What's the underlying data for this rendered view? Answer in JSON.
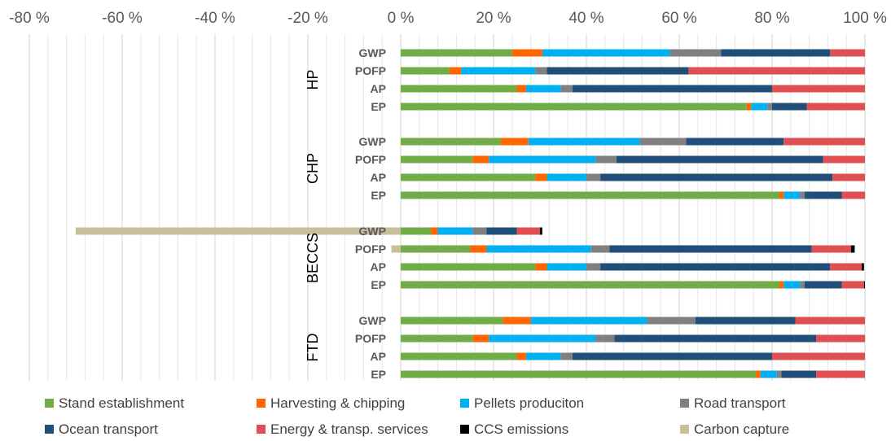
{
  "chart_data": {
    "type": "bar",
    "orientation": "horizontal",
    "stacked": true,
    "xlim": [
      -80,
      100
    ],
    "x_ticks": [
      "-80 %",
      "-60 %",
      "-40 %",
      "-20 %",
      "0 %",
      "20 %",
      "40 %",
      "60 %",
      "80 %",
      "100 %"
    ],
    "x_tick_values": [
      -80,
      -60,
      -40,
      -20,
      0,
      20,
      40,
      60,
      80,
      100
    ],
    "grid": "vertical minor gridlines",
    "legend_position": "bottom",
    "series": [
      {
        "name": "Stand establishment",
        "color": "#70AD47"
      },
      {
        "name": "Harvesting & chipping",
        "color": "#FF6600"
      },
      {
        "name": "Pellets produciton",
        "color": "#00B0F0"
      },
      {
        "name": "Road transport",
        "color": "#808080"
      },
      {
        "name": "Ocean transport",
        "color": "#1F4E79"
      },
      {
        "name": "Energy & transp. services",
        "color": "#E04F52"
      },
      {
        "name": "CCS emissions",
        "color": "#000000"
      },
      {
        "name": "Carbon capture",
        "color": "#C8BE9B"
      }
    ],
    "groups": [
      {
        "name": "HP",
        "bars": [
          {
            "label": "GWP",
            "values": [
              24,
              6.5,
              27.5,
              11,
              23.5,
              7.5,
              0,
              0
            ]
          },
          {
            "label": "POFP",
            "values": [
              10.5,
              2.5,
              16,
              2.5,
              30.5,
              38,
              0,
              0
            ]
          },
          {
            "label": "AP",
            "values": [
              25,
              2,
              7.5,
              2.5,
              43,
              20,
              0,
              0
            ]
          },
          {
            "label": "EP",
            "values": [
              74.5,
              1,
              3.5,
              1,
              7.5,
              12.5,
              0,
              0
            ]
          }
        ]
      },
      {
        "name": "CHP",
        "bars": [
          {
            "label": "GWP",
            "values": [
              21.5,
              6,
              24,
              10,
              21,
              17.5,
              0,
              0
            ]
          },
          {
            "label": "POFP",
            "values": [
              15.5,
              3.5,
              23,
              4.5,
              44.5,
              9,
              0,
              0
            ]
          },
          {
            "label": "AP",
            "values": [
              29,
              2.5,
              8.5,
              3,
              50,
              7,
              0,
              0
            ]
          },
          {
            "label": "EP",
            "values": [
              81.5,
              1,
              3.5,
              1,
              8,
              5,
              0,
              0
            ]
          }
        ]
      },
      {
        "name": "BECCS",
        "bars": [
          {
            "label": "GWP",
            "values": [
              6.5,
              1.5,
              7.5,
              3,
              6.5,
              5,
              0.5,
              -70
            ]
          },
          {
            "label": "POFP",
            "values": [
              15,
              3.5,
              22.5,
              4,
              43.5,
              8.5,
              0.8,
              -2
            ]
          },
          {
            "label": "AP",
            "values": [
              29,
              2.5,
              8.5,
              3,
              49.5,
              6.8,
              0.5,
              0
            ]
          },
          {
            "label": "EP",
            "values": [
              81.5,
              1,
              3.5,
              1,
              8,
              4.8,
              0.2,
              0
            ]
          }
        ]
      },
      {
        "name": "FTD",
        "bars": [
          {
            "label": "GWP",
            "values": [
              22,
              6,
              25,
              10.5,
              21.5,
              15,
              0,
              0
            ]
          },
          {
            "label": "POFP",
            "values": [
              15.5,
              3.5,
              23,
              4,
              43.5,
              10.5,
              0,
              0
            ]
          },
          {
            "label": "AP",
            "values": [
              25,
              2,
              7.5,
              2.5,
              43,
              20,
              0,
              0
            ]
          },
          {
            "label": "EP",
            "values": [
              76.5,
              1,
              3.5,
              1,
              7.5,
              10.5,
              0,
              0
            ]
          }
        ]
      }
    ]
  }
}
